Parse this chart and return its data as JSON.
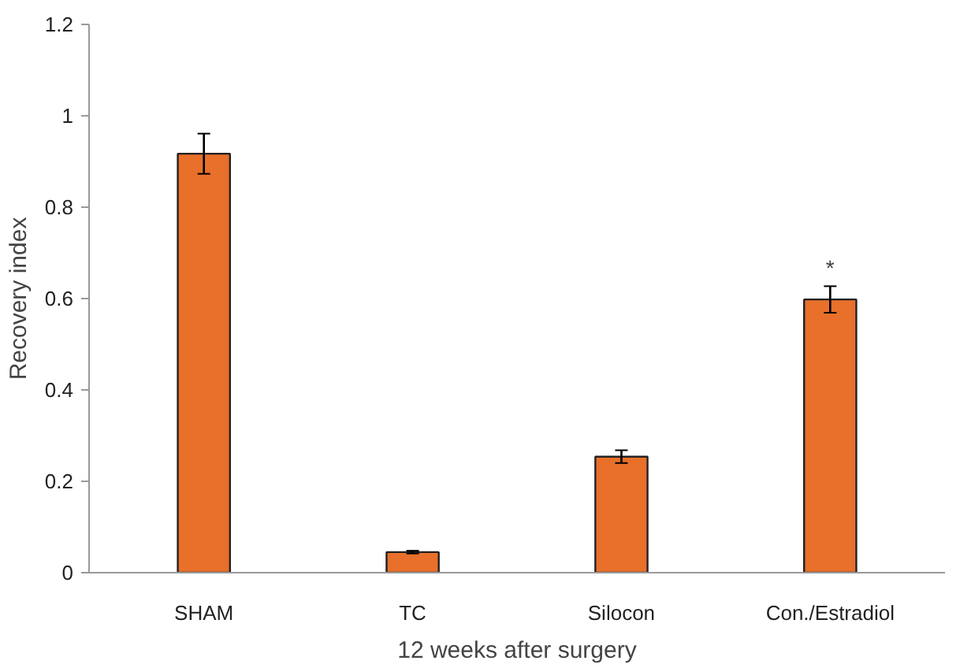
{
  "chart_data": {
    "type": "bar",
    "xlabel": "12 weeks after surgery",
    "ylabel": "Recovery index",
    "categories": [
      "SHAM",
      "TC",
      "Silocon",
      "Con./Estradiol"
    ],
    "values": [
      0.917,
      0.045,
      0.254,
      0.598
    ],
    "errors": [
      0.044,
      0.003,
      0.014,
      0.029
    ],
    "color": "#e8702a",
    "ylim": [
      0,
      1.2
    ],
    "yticks": [
      0,
      0.2,
      0.4,
      0.6,
      0.8,
      1,
      1.2
    ],
    "grid": false,
    "annotations": [
      {
        "text": "*",
        "x": "Con./Estradiol",
        "y": 0.64
      }
    ]
  }
}
